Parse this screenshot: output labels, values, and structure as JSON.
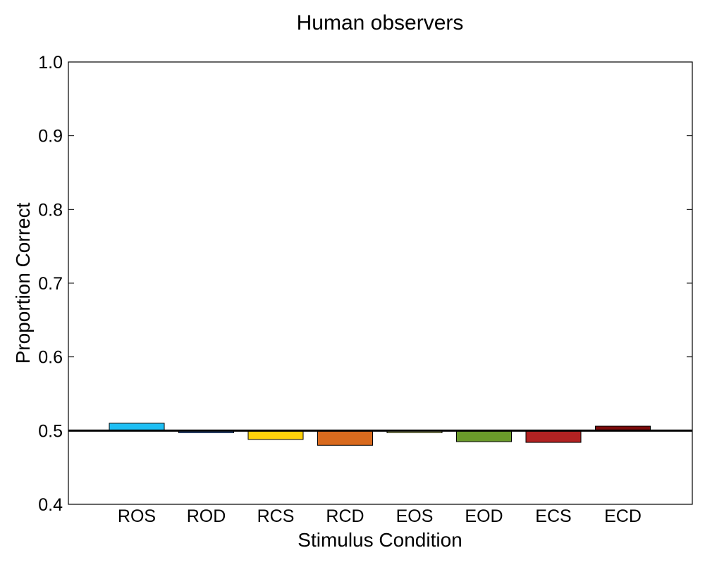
{
  "chart_data": {
    "type": "bar",
    "title": "Human observers",
    "xlabel": "Stimulus Condition",
    "ylabel": "Proportion Correct",
    "ylim": [
      0.4,
      1.0
    ],
    "yticks": [
      "0.4",
      "0.5",
      "0.6",
      "0.7",
      "0.8",
      "0.9",
      "1.0"
    ],
    "baseline": 0.5,
    "grid": false,
    "legend": "none",
    "categories": [
      "ROS",
      "ROD",
      "RCS",
      "RCD",
      "EOS",
      "EOD",
      "ECS",
      "ECD"
    ],
    "values": [
      0.51,
      0.497,
      0.488,
      0.48,
      0.497,
      0.485,
      0.484,
      0.506
    ],
    "colors": [
      "#1EBFF4",
      "#4A7BD0",
      "#FFD20A",
      "#D86A1E",
      "#E4EE9A",
      "#6A9A2A",
      "#B22222",
      "#7A0A0A"
    ]
  }
}
